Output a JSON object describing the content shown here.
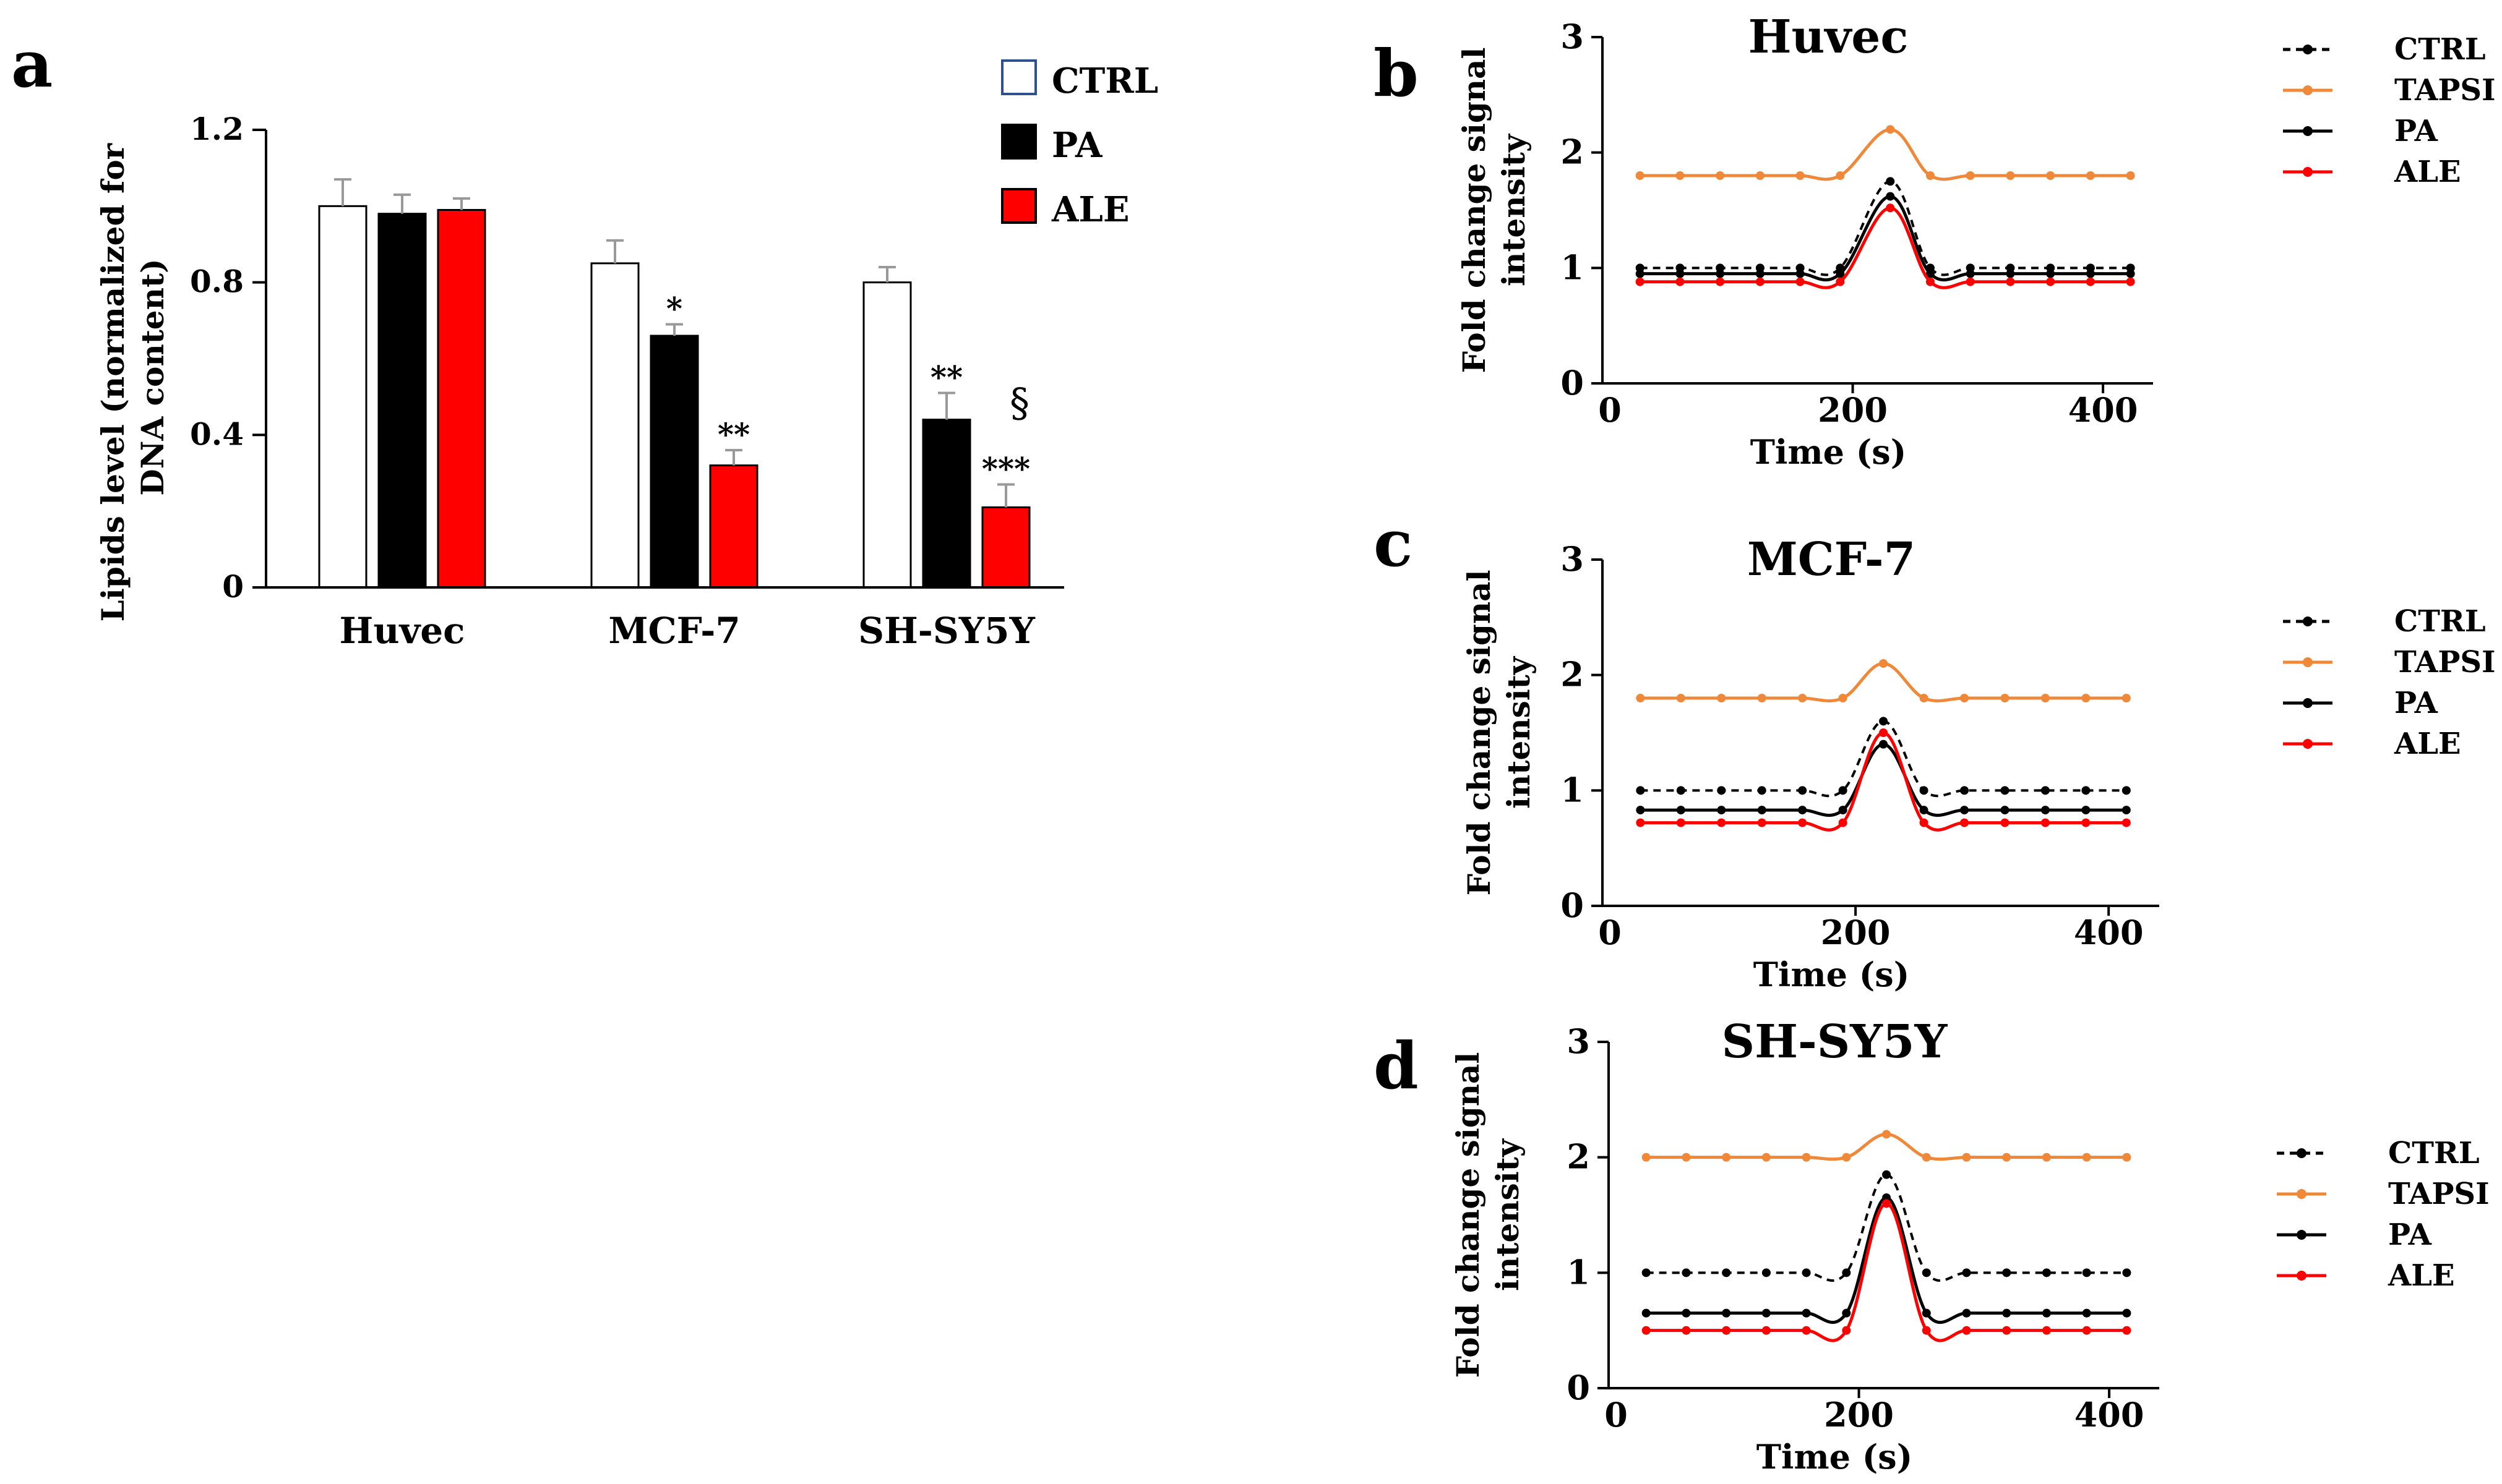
{
  "chart_data": [
    {
      "panel_label": "a",
      "type": "bar",
      "title": "",
      "xlabel": "",
      "ylabel_lines": [
        "Lipids level (normalized for",
        "DNA content)"
      ],
      "categories": [
        "Huvec",
        "MCF-7",
        "SH-SY5Y"
      ],
      "ylim": [
        0,
        1.2
      ],
      "yticks": [
        "0",
        "0.4",
        "0.8",
        "1.2"
      ],
      "ytick_values": [
        0,
        0.4,
        0.8,
        1.2
      ],
      "series": [
        {
          "name": "CTRL",
          "color": "#ffffff",
          "values": [
            1.0,
            0.85,
            0.8
          ],
          "errors": [
            0.07,
            0.06,
            0.04
          ]
        },
        {
          "name": "PA",
          "color": "#000000",
          "values": [
            0.98,
            0.66,
            0.44
          ],
          "errors": [
            0.05,
            0.03,
            0.07
          ]
        },
        {
          "name": "ALE",
          "color": "#ff0000",
          "values": [
            0.99,
            0.32,
            0.21
          ],
          "errors": [
            0.03,
            0.04,
            0.06
          ]
        }
      ],
      "annotations": [
        {
          "text": "*",
          "category": 1,
          "series": 1
        },
        {
          "text": "**",
          "category": 1,
          "series": 2
        },
        {
          "text": "**",
          "category": 2,
          "series": 1
        },
        {
          "text": "§",
          "category": 2,
          "series": 2,
          "level": 2
        },
        {
          "text": "***",
          "category": 2,
          "series": 2,
          "level": 1
        }
      ],
      "legend": [
        "CTRL",
        "PA",
        "ALE"
      ],
      "legend_position": "top-right"
    },
    {
      "panel_label": "b",
      "type": "line",
      "title": "Huvec",
      "xlabel": "Time (s)",
      "ylabel_lines": [
        "Fold change signal",
        "intensity"
      ],
      "xlim": [
        0,
        440
      ],
      "ylim": [
        0,
        3
      ],
      "xticks": [
        0,
        200,
        400
      ],
      "yticks": [
        0,
        1,
        2,
        3
      ],
      "x": [
        30,
        62,
        94,
        126,
        158,
        190,
        230,
        262,
        294,
        326,
        358,
        390,
        422
      ],
      "series": [
        {
          "name": "CTRL",
          "color": "#000000",
          "dashed": true,
          "values": [
            1.0,
            1.0,
            1.0,
            1.0,
            1.0,
            1.0,
            1.75,
            1.0,
            1.0,
            1.0,
            1.0,
            1.0,
            1.0
          ]
        },
        {
          "name": "TAPSI",
          "color": "#f0883a",
          "dashed": false,
          "values": [
            1.8,
            1.8,
            1.8,
            1.8,
            1.8,
            1.8,
            2.2,
            1.8,
            1.8,
            1.8,
            1.8,
            1.8,
            1.8
          ]
        },
        {
          "name": "PA",
          "color": "#000000",
          "dashed": false,
          "values": [
            0.95,
            0.95,
            0.95,
            0.95,
            0.95,
            0.95,
            1.62,
            0.95,
            0.95,
            0.95,
            0.95,
            0.95,
            0.95
          ]
        },
        {
          "name": "ALE",
          "color": "#ff0000",
          "dashed": false,
          "values": [
            0.88,
            0.88,
            0.88,
            0.88,
            0.88,
            0.88,
            1.52,
            0.88,
            0.88,
            0.88,
            0.88,
            0.88,
            0.88
          ]
        }
      ],
      "legend": [
        "CTRL",
        "TAPSI",
        "PA",
        "ALE"
      ],
      "legend_position": "right"
    },
    {
      "panel_label": "c",
      "type": "line",
      "title": "MCF-7",
      "xlabel": "Time (s)",
      "ylabel_lines": [
        "Fold change signal",
        "intensity"
      ],
      "xlim": [
        0,
        440
      ],
      "ylim": [
        0,
        3
      ],
      "xticks": [
        0,
        200,
        400
      ],
      "yticks": [
        0,
        1,
        2,
        3
      ],
      "x": [
        30,
        62,
        94,
        126,
        158,
        190,
        222,
        254,
        286,
        318,
        350,
        382,
        414
      ],
      "series": [
        {
          "name": "CTRL",
          "color": "#000000",
          "dashed": true,
          "values": [
            1.0,
            1.0,
            1.0,
            1.0,
            1.0,
            1.0,
            1.6,
            1.0,
            1.0,
            1.0,
            1.0,
            1.0,
            1.0
          ]
        },
        {
          "name": "TAPSI",
          "color": "#f0883a",
          "dashed": false,
          "values": [
            1.8,
            1.8,
            1.8,
            1.8,
            1.8,
            1.8,
            2.1,
            1.8,
            1.8,
            1.8,
            1.8,
            1.8,
            1.8
          ]
        },
        {
          "name": "PA",
          "color": "#000000",
          "dashed": false,
          "values": [
            0.83,
            0.83,
            0.83,
            0.83,
            0.83,
            0.83,
            1.4,
            0.83,
            0.83,
            0.83,
            0.83,
            0.83,
            0.83
          ]
        },
        {
          "name": "ALE",
          "color": "#ff0000",
          "dashed": false,
          "values": [
            0.72,
            0.72,
            0.72,
            0.72,
            0.72,
            0.72,
            1.5,
            0.72,
            0.72,
            0.72,
            0.72,
            0.72,
            0.72
          ]
        }
      ],
      "legend": [
        "CTRL",
        "TAPSI",
        "PA",
        "ALE"
      ],
      "legend_position": "right"
    },
    {
      "panel_label": "d",
      "type": "line",
      "title": "SH-SY5Y",
      "xlabel": "Time (s)",
      "ylabel_lines": [
        "Fold change signal",
        "intensity"
      ],
      "xlim": [
        0,
        440
      ],
      "ylim": [
        0,
        3
      ],
      "xticks": [
        0,
        200,
        400
      ],
      "yticks": [
        0,
        1,
        2,
        3
      ],
      "x": [
        30,
        62,
        94,
        126,
        158,
        190,
        222,
        254,
        286,
        318,
        350,
        382,
        414
      ],
      "series": [
        {
          "name": "CTRL",
          "color": "#000000",
          "dashed": true,
          "values": [
            1.0,
            1.0,
            1.0,
            1.0,
            1.0,
            1.0,
            1.85,
            1.0,
            1.0,
            1.0,
            1.0,
            1.0,
            1.0
          ]
        },
        {
          "name": "TAPSI",
          "color": "#f0883a",
          "dashed": false,
          "values": [
            2.0,
            2.0,
            2.0,
            2.0,
            2.0,
            2.0,
            2.2,
            2.0,
            2.0,
            2.0,
            2.0,
            2.0,
            2.0
          ]
        },
        {
          "name": "PA",
          "color": "#000000",
          "dashed": false,
          "values": [
            0.65,
            0.65,
            0.65,
            0.65,
            0.65,
            0.65,
            1.65,
            0.65,
            0.65,
            0.65,
            0.65,
            0.65,
            0.65
          ]
        },
        {
          "name": "ALE",
          "color": "#ff0000",
          "dashed": false,
          "values": [
            0.5,
            0.5,
            0.5,
            0.5,
            0.5,
            0.5,
            1.6,
            0.5,
            0.5,
            0.5,
            0.5,
            0.5,
            0.5
          ]
        }
      ],
      "legend": [
        "CTRL",
        "TAPSI",
        "PA",
        "ALE"
      ],
      "legend_position": "right"
    }
  ]
}
